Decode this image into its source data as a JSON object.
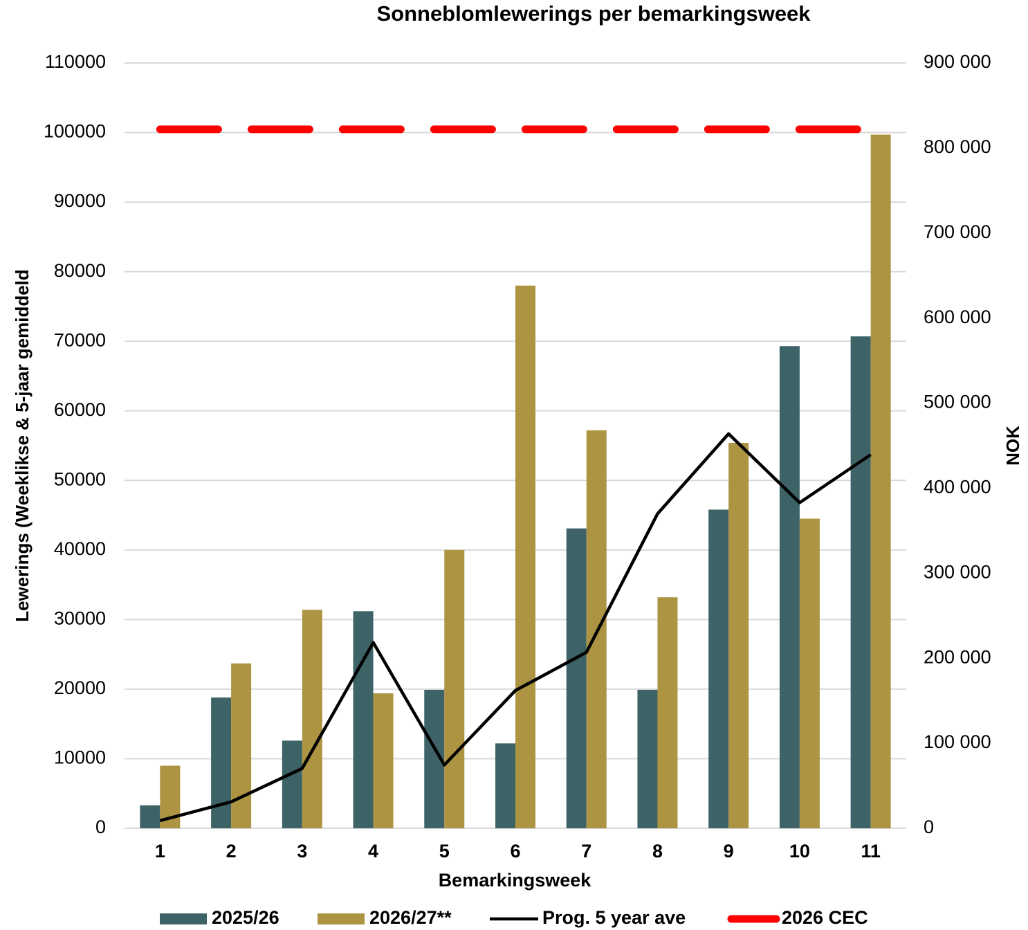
{
  "chart_data": {
    "type": "bar",
    "title": "Sonneblomlewerings per bemarkingsweek",
    "x_label": "Bemarkingsweek",
    "y_label": "Lewerings (Weeklikse & 5-jaar gemiddeld",
    "y2_label": "NOK",
    "categories": [
      "1",
      "2",
      "3",
      "4",
      "5",
      "6",
      "7",
      "8",
      "9",
      "10",
      "11"
    ],
    "series": [
      {
        "name": "2025/26",
        "kind": "bar",
        "color": "#3d6367",
        "values": [
          3300,
          18800,
          12600,
          31200,
          19900,
          12200,
          43100,
          19900,
          45800,
          69300,
          70700
        ]
      },
      {
        "name": "2026/27**",
        "kind": "bar",
        "color": "#ad9442",
        "values": [
          9000,
          23700,
          31400,
          19400,
          40000,
          78000,
          57200,
          33200,
          55400,
          44500,
          99700
        ]
      },
      {
        "name": "Prog. 5 year ave",
        "kind": "line",
        "color": "#000000",
        "values": [
          1100,
          3800,
          8600,
          26700,
          9100,
          19800,
          25300,
          45200,
          56700,
          46800,
          53700
        ]
      },
      {
        "name": "2026 CEC",
        "kind": "dashed",
        "color": "#ff0000",
        "axis": "y2",
        "values": [
          822000,
          822000,
          822000,
          822000,
          822000,
          822000,
          822000,
          822000,
          822000,
          822000,
          822000
        ]
      }
    ],
    "ylim": [
      0,
      110000
    ],
    "yticks": [
      0,
      10000,
      20000,
      30000,
      40000,
      50000,
      60000,
      70000,
      80000,
      90000,
      100000,
      110000
    ],
    "y2lim": [
      0,
      900000
    ],
    "y2ticks": [
      0,
      {
        "value": 100000,
        "label": "100 000"
      },
      {
        "value": 200000,
        "label": "200 000"
      },
      {
        "value": 300000,
        "label": "300 000"
      },
      {
        "value": 400000,
        "label": "400 000"
      },
      {
        "value": 500000,
        "label": "500 000"
      },
      {
        "value": 600000,
        "label": "600 000"
      },
      {
        "value": 700000,
        "label": "700 000"
      },
      {
        "value": 800000,
        "label": "800 000"
      },
      {
        "value": 900000,
        "label": "900 000"
      }
    ],
    "grid": true,
    "legend": "bottom"
  }
}
